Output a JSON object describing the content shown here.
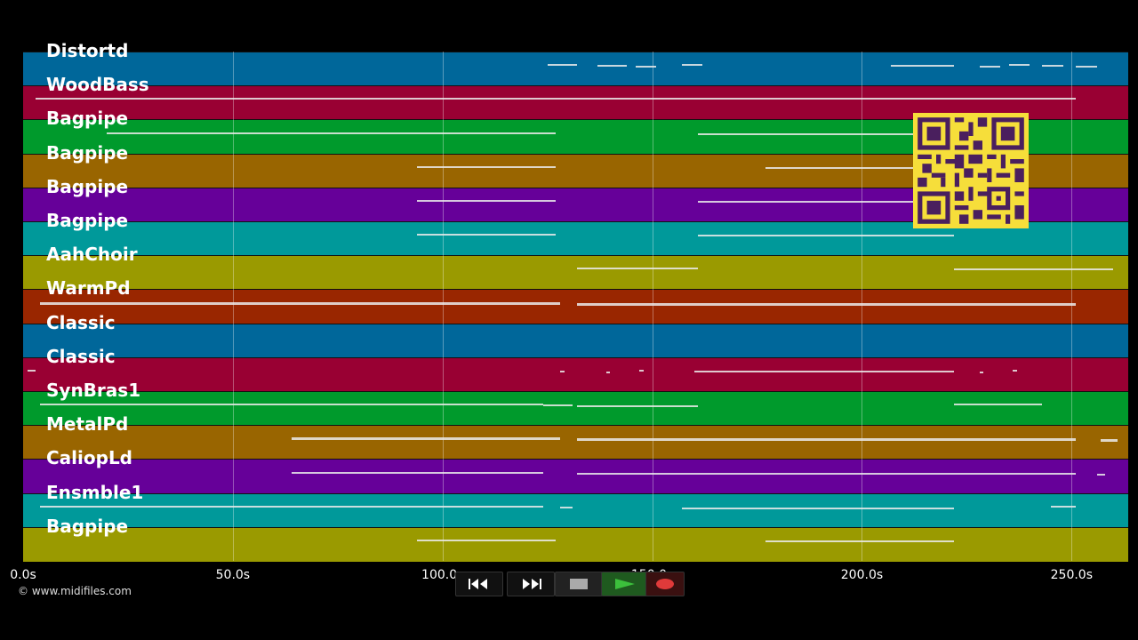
{
  "tracks": [
    {
      "label": "Distortd",
      "color": "#00679a"
    },
    {
      "label": "WoodBass",
      "color": "#990033"
    },
    {
      "label": "Bagpipe",
      "color": "#009a2c"
    },
    {
      "label": "Bagpipe",
      "color": "#996500"
    },
    {
      "label": "Bagpipe",
      "color": "#660099"
    },
    {
      "label": "Bagpipe",
      "color": "#00999a"
    },
    {
      "label": "AahChoir",
      "color": "#9a9a00"
    },
    {
      "label": "WarmPd",
      "color": "#992600"
    },
    {
      "label": "Classic",
      "color": "#00679a"
    },
    {
      "label": "Classic",
      "color": "#990033"
    },
    {
      "label": "SynBras1",
      "color": "#009a2c"
    },
    {
      "label": "MetalPd",
      "color": "#996500"
    },
    {
      "label": "CaliopLd",
      "color": "#660099"
    },
    {
      "label": "Ensmble1",
      "color": "#00999a"
    },
    {
      "label": "Bagpipe",
      "color": "#9a9a00"
    }
  ],
  "time_axis": {
    "max_seconds": 263.5,
    "ticks": [
      {
        "t": 0,
        "label": "0.0s"
      },
      {
        "t": 50,
        "label": "50.0s"
      },
      {
        "t": 100,
        "label": "100.0s"
      },
      {
        "t": 150,
        "label": "150.0s"
      },
      {
        "t": 200,
        "label": "200.0s"
      },
      {
        "t": 250,
        "label": "250.0s"
      }
    ]
  },
  "credit": "© www.midifiles.com",
  "controls": {
    "rewind_icon": "rewind-icon",
    "fast_forward_icon": "fast-forward-icon",
    "stop_icon": "stop-icon",
    "play_icon": "play-icon",
    "record_icon": "record-icon"
  },
  "qr_code_icon": "qr-code-icon",
  "note_segments": [
    [
      [
        125,
        132
      ],
      [
        137,
        144
      ],
      [
        146,
        151
      ],
      [
        157,
        162
      ],
      [
        207,
        222
      ],
      [
        228,
        233
      ],
      [
        235,
        240
      ],
      [
        243,
        248
      ],
      [
        251,
        256
      ]
    ],
    [
      [
        3,
        251
      ]
    ],
    [
      [
        20,
        127
      ],
      [
        161,
        220
      ]
    ],
    [
      [
        94,
        127
      ],
      [
        177,
        222
      ]
    ],
    [
      [
        94,
        127
      ],
      [
        161,
        222
      ]
    ],
    [
      [
        94,
        127
      ],
      [
        161,
        222
      ]
    ],
    [
      [
        132,
        161
      ],
      [
        222,
        260
      ]
    ],
    [
      [
        4,
        128
      ],
      [
        132,
        251
      ]
    ],
    [],
    [
      [
        1,
        3
      ],
      [
        128,
        129
      ],
      [
        139,
        140
      ],
      [
        147,
        148
      ],
      [
        160,
        222
      ],
      [
        228,
        229
      ],
      [
        236,
        237
      ]
    ],
    [
      [
        4,
        124
      ],
      [
        124,
        131
      ],
      [
        132,
        161
      ],
      [
        222,
        243
      ]
    ],
    [
      [
        64,
        128
      ],
      [
        132,
        251
      ],
      [
        257,
        261
      ]
    ],
    [
      [
        64,
        124
      ],
      [
        132,
        251
      ],
      [
        256,
        258
      ]
    ],
    [
      [
        4,
        124
      ],
      [
        128,
        131
      ],
      [
        157,
        222
      ],
      [
        245,
        251
      ]
    ],
    [
      [
        94,
        127
      ],
      [
        177,
        222
      ]
    ]
  ]
}
